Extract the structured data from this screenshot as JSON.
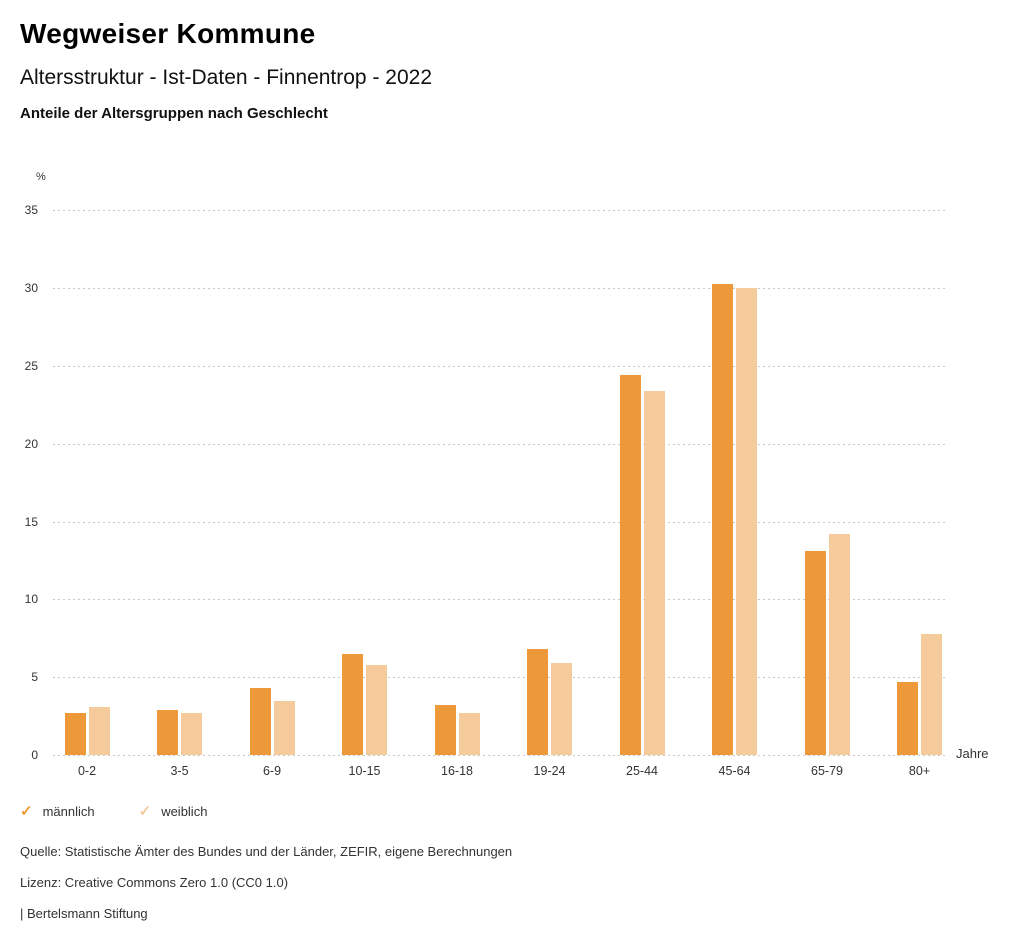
{
  "header": {
    "title": "Wegweiser Kommune",
    "subtitle": "Altersstruktur - Ist-Daten - Finnentrop - 2022",
    "description": "Anteile der Altersgruppen nach Geschlecht"
  },
  "chart_data": {
    "type": "bar",
    "title": "Anteile der Altersgruppen nach Geschlecht",
    "unit_label": "%",
    "xlabel": "Jahre",
    "ylabel": "%",
    "ylim": [
      0,
      35
    ],
    "yticks": [
      35,
      30,
      25,
      20,
      15,
      10,
      5,
      0
    ],
    "grid": "dotted horizontal",
    "legend_position": "bottom-left",
    "categories": [
      "0-2",
      "3-5",
      "6-9",
      "10-15",
      "16-18",
      "19-24",
      "25-44",
      "45-64",
      "65-79",
      "80+"
    ],
    "series": [
      {
        "name": "männlich",
        "key": "maennlich",
        "color": "#ED9839",
        "values": [
          2.7,
          2.9,
          4.3,
          6.5,
          3.2,
          6.8,
          24.4,
          30.3,
          13.1,
          4.7
        ]
      },
      {
        "name": "weiblich",
        "key": "weiblich",
        "color": "#F6CB9C",
        "values": [
          3.1,
          2.7,
          3.5,
          5.8,
          2.7,
          5.9,
          23.4,
          30.0,
          14.2,
          7.8
        ]
      }
    ]
  },
  "legend": {
    "items": [
      {
        "label": "männlich",
        "color": "#ED9839",
        "icon": "check-icon"
      },
      {
        "label": "weiblich",
        "color": "#F6CB9C",
        "icon": "check-icon"
      }
    ]
  },
  "footer": {
    "source": "Quelle: Statistische Ämter des Bundes und der Länder, ZEFIR, eigene Berechnungen",
    "license": "Lizenz: Creative Commons Zero 1.0 (CC0 1.0)",
    "attribution": "| Bertelsmann Stiftung"
  }
}
